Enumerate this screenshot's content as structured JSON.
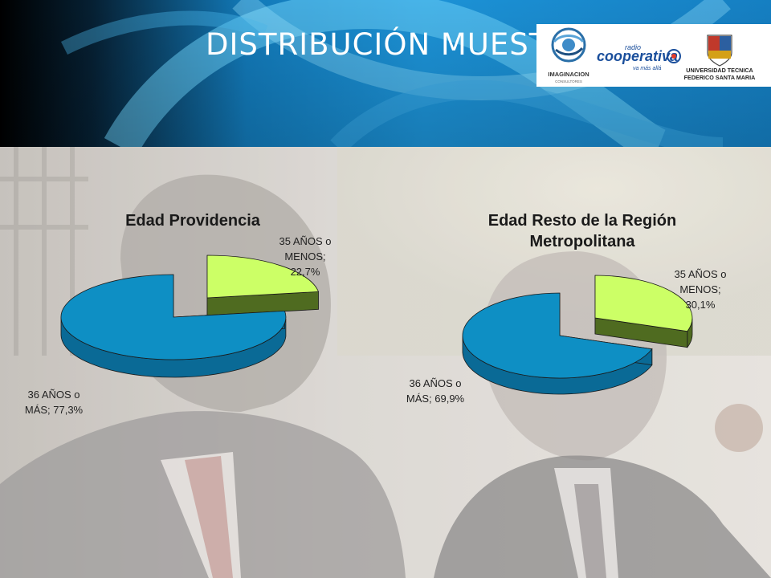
{
  "header": {
    "title": "DISTRIBUCIÓN MUESTRA",
    "logos": [
      {
        "name": "imaginacion",
        "text": "IMAGINACION",
        "subtext": "CONSULTORES"
      },
      {
        "name": "radio-cooperativa",
        "text_top": "radio",
        "text_main": "cooperativa",
        "text_tag": "va más allá"
      },
      {
        "name": "utfsm",
        "text_line1": "UNIVERSIDAD TECNICA",
        "text_line2": "FEDERICO SANTA MARIA"
      }
    ]
  },
  "colors": {
    "header_blue": "#1c8fd0",
    "slice_blue": "#0e8fc4",
    "slice_blue_side": "#0a6a96",
    "slice_green": "#ccff66",
    "slice_green_side": "#4f6b20"
  },
  "chart_data": [
    {
      "type": "pie",
      "title": "Edad Providencia",
      "slices": [
        {
          "label": "35 AÑOS o MENOS",
          "value": 22.7,
          "label_lines": [
            "35 AÑOS o",
            "MENOS;",
            "22,7%"
          ]
        },
        {
          "label": "36 AÑOS o MÁS",
          "value": 77.3,
          "label_lines": [
            "36 AÑOS o",
            "MÁS; 77,3%"
          ]
        }
      ]
    },
    {
      "type": "pie",
      "title": "Edad Resto de la Región Metropolitana",
      "title_lines": [
        "Edad Resto de la Región",
        "Metropolitana"
      ],
      "slices": [
        {
          "label": "35 AÑOS o MENOS",
          "value": 30.1,
          "label_lines": [
            "35 AÑOS o",
            "MENOS;",
            "30,1%"
          ]
        },
        {
          "label": "36 AÑOS o MÁS",
          "value": 69.9,
          "label_lines": [
            "36 AÑOS o",
            "MÁS; 69,9%"
          ]
        }
      ]
    }
  ]
}
